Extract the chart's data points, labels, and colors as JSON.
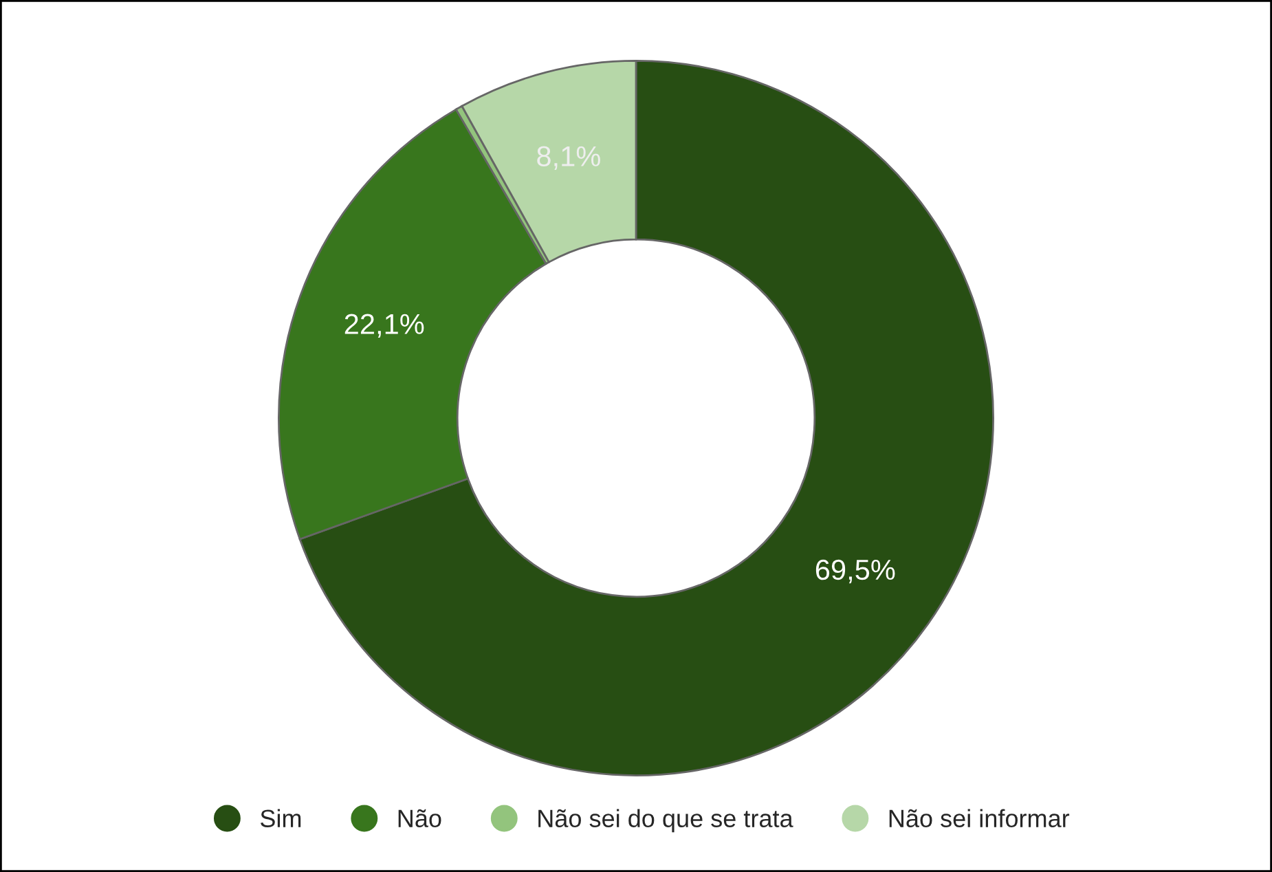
{
  "chart_data": {
    "type": "donut",
    "categories": [
      "Sim",
      "Não",
      "Não sei do que se trata",
      "Não sei informar"
    ],
    "values": [
      69.5,
      22.1,
      0.3,
      8.1
    ],
    "colors": [
      "#274e13",
      "#38761d",
      "#93c47d",
      "#b6d7a8"
    ],
    "value_labels": [
      "69,5%",
      "22,1%",
      null,
      "8,1%"
    ],
    "legend": "bottom"
  }
}
